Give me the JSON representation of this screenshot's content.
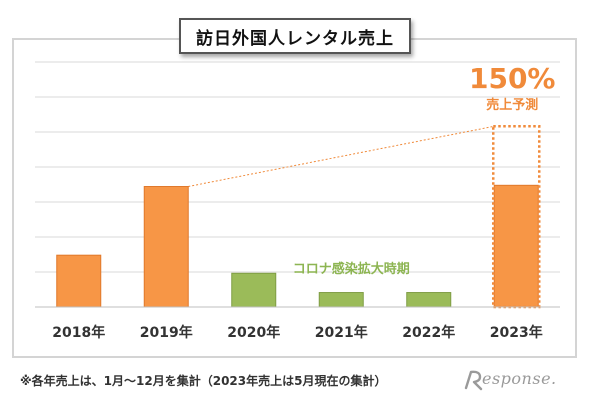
{
  "title": "訪日外国人レンタル売上",
  "footnote": "※各年売上は、1月～12月を集計（2023年売上は5月現在の集計）",
  "logo_text": "esponse.",
  "colors": {
    "orange": "#F79646",
    "orange_dark": "#E0782A",
    "green": "#9BBB59",
    "green_text": "#8DB552",
    "projection": "#F08A3A",
    "grid": "#D9D9D9"
  },
  "chart_data": {
    "type": "bar",
    "title": "訪日外国人レンタル売上",
    "categories": [
      "2018年",
      "2019年",
      "2020年",
      "2021年",
      "2022年",
      "2023年"
    ],
    "values": [
      43,
      100,
      28,
      12,
      12,
      101
    ],
    "bar_colors": [
      "orange",
      "orange",
      "green",
      "green",
      "green",
      "orange"
    ],
    "ylim": [
      0,
      205
    ],
    "grid": true,
    "projection": {
      "category": "2023年",
      "value": 150,
      "label_value": "150%",
      "label_text": "売上予測"
    },
    "annotation": "コロナ感染拡大時期",
    "xlabel": "",
    "ylabel": ""
  }
}
